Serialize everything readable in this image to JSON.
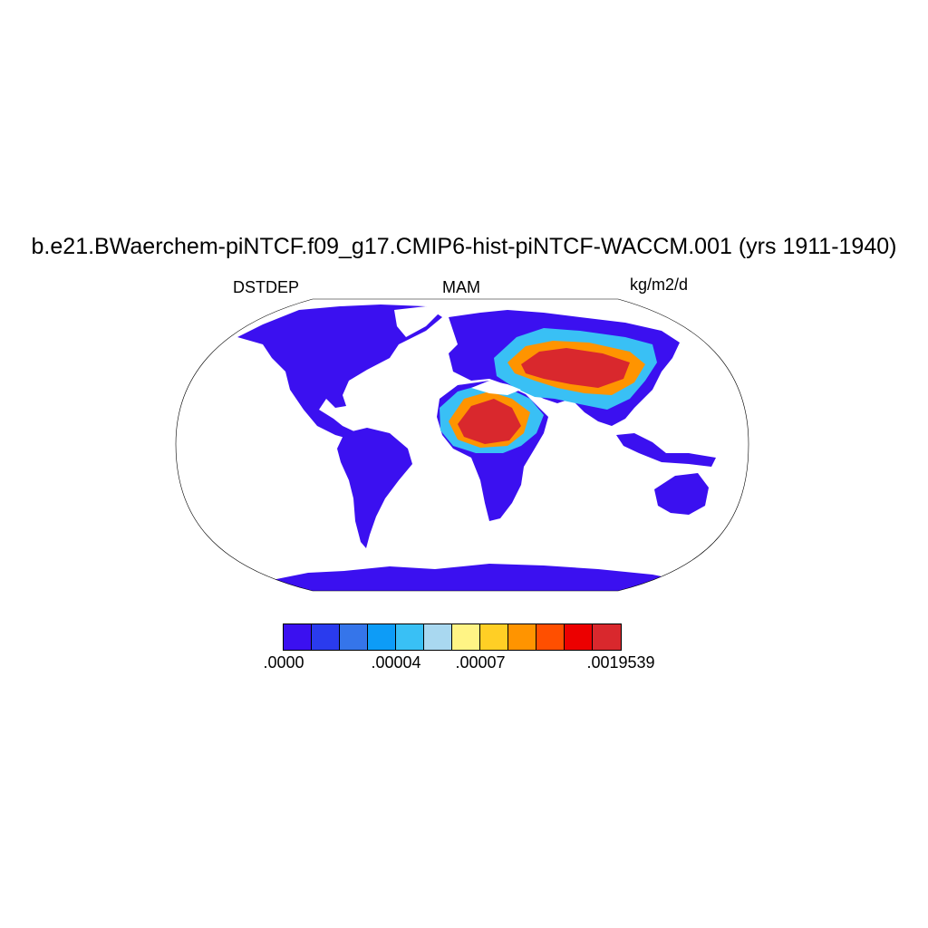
{
  "header": {
    "title": "b.e21.BWaerchem-piNTCF.f09_g17.CMIP6-hist-piNTCF-WACCM.001 (yrs 1911-1940)",
    "variable": "DSTDEP",
    "season": "MAM",
    "units": "kg/m2/d"
  },
  "map": {
    "projection": "robinson",
    "field_description": "dust deposition",
    "colors": {
      "ocean": "#ffffff",
      "low": "#3b10f0",
      "mid": "#39c0f5",
      "high": "#e32627"
    }
  },
  "colorbar": {
    "colors": [
      "#3b10f0",
      "#2a3bee",
      "#3575ea",
      "#0d9cf7",
      "#39c0f5",
      "#a9d8f0",
      "#fff485",
      "#ffcf25",
      "#ff9400",
      "#ff4f00",
      "#ec0000",
      "#d9282d"
    ],
    "tick_labels": [
      {
        "text": ".0000",
        "boundary": 0
      },
      {
        "text": ".00004",
        "boundary": 4
      },
      {
        "text": ".00007",
        "boundary": 7
      },
      {
        "text": ".0019539",
        "boundary": 12
      }
    ]
  }
}
